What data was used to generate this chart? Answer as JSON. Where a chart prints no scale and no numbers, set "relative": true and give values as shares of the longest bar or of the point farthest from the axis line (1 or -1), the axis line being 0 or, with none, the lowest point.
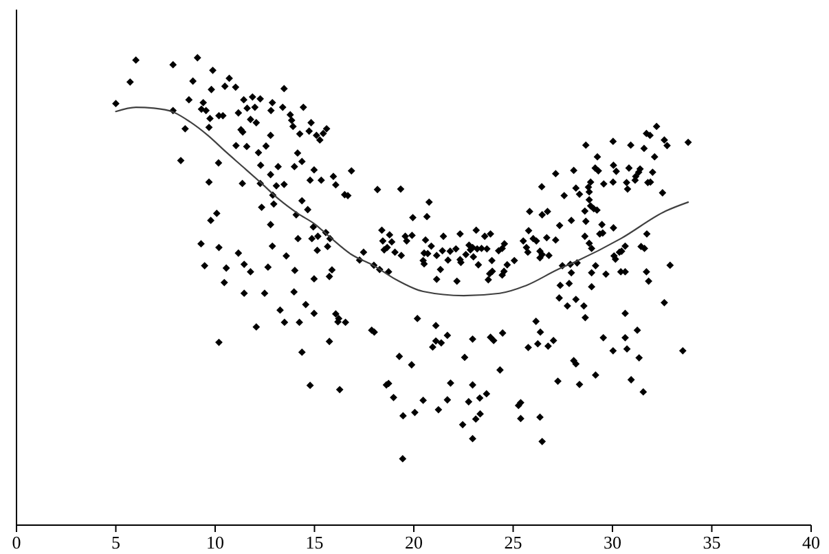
{
  "chart_data": {
    "type": "scatter",
    "relative": true,
    "xlim": [
      0,
      40
    ],
    "xticks": [
      0,
      5,
      10,
      15,
      20,
      25,
      30,
      35,
      40
    ],
    "marker": "diamond",
    "series": [
      {
        "color": "#000000",
        "x": [
          5.0,
          5.72,
          6.01,
          7.88,
          9.11,
          8.88,
          9.88,
          10.71,
          10.49,
          11.03,
          9.81,
          8.68,
          9.4,
          9.31,
          9.54,
          7.88,
          10.19,
          10.39,
          9.74,
          9.69,
          8.49,
          11.44,
          11.88,
          12.27,
          11.61,
          12.0,
          11.17,
          12.88,
          12.81,
          13.47,
          13.4,
          14.44,
          13.78,
          13.85,
          13.92,
          11.78,
          12.07,
          11.3,
          11.39,
          12.79,
          14.83,
          14.73,
          14.26,
          15.1,
          15.44,
          15.27,
          15.61,
          11.05,
          11.59,
          12.18,
          12.56,
          14.15,
          14.37,
          13.99,
          14.98,
          14.78,
          15.34,
          8.27,
          10.17,
          12.29,
          13.17,
          12.79,
          9.69,
          11.37,
          12.27,
          13.08,
          13.47,
          12.9,
          12.95,
          14.37,
          14.66,
          14.08,
          12.34,
          10.08,
          9.78,
          12.79,
          14.94,
          9.29,
          10.19,
          9.47,
          10.56,
          11.17,
          11.46,
          11.78,
          10.46,
          12.66,
          12.88,
          13.58,
          14.17,
          14.87,
          15.17,
          15.57,
          15.78,
          15.66,
          15.14,
          14.01,
          14.98,
          15.88,
          15.75,
          11.46,
          12.49,
          13.97,
          14.56,
          13.27,
          14.98,
          13.49,
          14.24,
          16.07,
          16.22,
          16.18,
          16.56,
          12.07,
          10.19,
          15.75,
          14.37,
          17.88,
          18.01,
          20.18,
          19.27,
          19.89,
          14.78,
          16.27,
          18.62,
          18.73,
          18.98,
          18.39,
          18.78,
          18.44,
          18.89,
          18.66,
          18.51,
          19.05,
          19.37,
          19.57,
          19.91,
          19.64,
          17.47,
          17.27,
          17.99,
          18.28,
          18.73,
          15.95,
          16.07,
          16.52,
          16.68,
          16.86,
          18.17,
          19.34,
          20.77,
          20.66,
          19.95,
          20.59,
          21.49,
          22.33,
          23.14,
          23.57,
          23.86,
          20.88,
          20.52,
          20.7,
          21.15,
          21.44,
          21.83,
          22.12,
          21.72,
          22.33,
          22.37,
          22.78,
          22.96,
          22.85,
          23.19,
          23.41,
          23.68,
          22.62,
          23.0,
          23.25,
          20.52,
          20.47,
          21.34,
          21.15,
          22.17,
          23.93,
          23.82,
          23.95,
          23.75,
          24.27,
          24.45,
          24.56,
          24.54,
          24.45,
          24.7,
          25.06,
          25.51,
          25.67,
          25.74,
          25.78,
          26.01,
          26.17,
          25.83,
          26.46,
          26.73,
          26.44,
          27.14,
          26.35,
          26.46,
          26.8,
          26.35,
          26.69,
          21.11,
          21.69,
          21.11,
          21.38,
          20.95,
          22.96,
          23.86,
          24.02,
          24.47,
          26.15,
          26.37,
          26.24,
          25.76,
          26.76,
          27.03,
          27.32,
          27.73,
          22.56,
          24.34,
          21.85,
          22.96,
          20.47,
          21.69,
          22.76,
          23.32,
          23.66,
          21.24,
          20.05,
          19.46,
          23.12,
          23.34,
          22.46,
          22.96,
          25.27,
          25.38,
          25.38,
          26.35,
          26.46,
          27.25,
          19.44,
          32.22,
          31.71,
          31.89,
          32.61,
          32.75,
          33.81,
          30.03,
          30.92,
          31.59,
          28.66,
          29.24,
          32.12,
          30.05,
          30.19,
          29.13,
          29.29,
          30.83,
          31.39,
          31.32,
          31.17,
          32.02,
          28.05,
          28.9,
          28.79,
          28.83,
          28.16,
          28.34,
          30.03,
          29.56,
          30.71,
          30.76,
          31.14,
          31.78,
          31.91,
          32.52,
          27.57,
          28.83,
          28.9,
          29.06,
          29.22,
          28.61,
          27.93,
          28.66,
          27.34,
          29.47,
          30.05,
          29.36,
          29.51,
          28.61,
          27.14,
          28.83,
          31.73,
          31.44,
          31.61,
          30.64,
          30.46,
          30.35,
          30.08,
          30.15,
          28.95,
          27.88,
          28.22,
          27.48,
          29.15,
          32.9,
          27.93,
          27.37,
          27.82,
          28.95,
          29.67,
          30.42,
          30.64,
          31.71,
          31.82,
          28.95,
          32.61,
          28.16,
          28.56,
          28.63,
          30.64,
          31.25,
          29.54,
          30.64,
          30.03,
          30.73,
          31.34,
          33.54,
          28.05,
          28.16,
          29.15,
          28.34,
          30.94,
          31.55
        ],
        "values": [
          0.902,
          0.948,
          0.995,
          0.985,
          1.0,
          0.95,
          0.973,
          0.956,
          0.939,
          0.937,
          0.932,
          0.91,
          0.904,
          0.89,
          0.887,
          0.887,
          0.876,
          0.876,
          0.87,
          0.851,
          0.848,
          0.91,
          0.916,
          0.912,
          0.892,
          0.894,
          0.882,
          0.904,
          0.887,
          0.934,
          0.894,
          0.894,
          0.878,
          0.866,
          0.853,
          0.868,
          0.861,
          0.846,
          0.841,
          0.834,
          0.861,
          0.843,
          0.837,
          0.834,
          0.838,
          0.824,
          0.848,
          0.812,
          0.81,
          0.797,
          0.811,
          0.796,
          0.778,
          0.767,
          0.76,
          0.738,
          0.738,
          0.78,
          0.775,
          0.77,
          0.767,
          0.75,
          0.734,
          0.731,
          0.731,
          0.726,
          0.729,
          0.706,
          0.687,
          0.694,
          0.675,
          0.664,
          0.68,
          0.667,
          0.652,
          0.643,
          0.638,
          0.602,
          0.594,
          0.555,
          0.55,
          0.582,
          0.558,
          0.542,
          0.519,
          0.552,
          0.597,
          0.576,
          0.613,
          0.613,
          0.618,
          0.626,
          0.613,
          0.596,
          0.588,
          0.545,
          0.527,
          0.546,
          0.532,
          0.496,
          0.496,
          0.499,
          0.472,
          0.46,
          0.453,
          0.434,
          0.434,
          0.452,
          0.442,
          0.435,
          0.434,
          0.424,
          0.391,
          0.393,
          0.37,
          0.417,
          0.413,
          0.442,
          0.361,
          0.343,
          0.299,
          0.29,
          0.3,
          0.303,
          0.273,
          0.631,
          0.621,
          0.608,
          0.606,
          0.594,
          0.589,
          0.584,
          0.577,
          0.618,
          0.62,
          0.608,
          0.584,
          0.567,
          0.556,
          0.547,
          0.542,
          0.746,
          0.728,
          0.707,
          0.705,
          0.758,
          0.718,
          0.719,
          0.691,
          0.66,
          0.658,
          0.61,
          0.618,
          0.623,
          0.631,
          0.618,
          0.623,
          0.597,
          0.582,
          0.581,
          0.577,
          0.587,
          0.586,
          0.591,
          0.567,
          0.568,
          0.562,
          0.599,
          0.594,
          0.589,
          0.591,
          0.592,
          0.591,
          0.579,
          0.574,
          0.557,
          0.559,
          0.566,
          0.547,
          0.526,
          0.522,
          0.566,
          0.538,
          0.543,
          0.525,
          0.587,
          0.592,
          0.602,
          0.543,
          0.535,
          0.557,
          0.566,
          0.608,
          0.594,
          0.584,
          0.63,
          0.613,
          0.608,
          0.671,
          0.664,
          0.671,
          0.724,
          0.752,
          0.586,
          0.579,
          0.577,
          0.572,
          0.615,
          0.427,
          0.406,
          0.394,
          0.39,
          0.381,
          0.398,
          0.402,
          0.395,
          0.411,
          0.436,
          0.413,
          0.388,
          0.38,
          0.383,
          0.395,
          0.486,
          0.469,
          0.359,
          0.332,
          0.304,
          0.3,
          0.267,
          0.268,
          0.264,
          0.272,
          0.281,
          0.247,
          0.241,
          0.234,
          0.227,
          0.238,
          0.215,
          0.185,
          0.256,
          0.262,
          0.228,
          0.231,
          0.179,
          0.308,
          0.142,
          0.853,
          0.838,
          0.834,
          0.824,
          0.812,
          0.819,
          0.821,
          0.813,
          0.806,
          0.813,
          0.788,
          0.788,
          0.77,
          0.757,
          0.764,
          0.758,
          0.764,
          0.762,
          0.755,
          0.746,
          0.755,
          0.759,
          0.734,
          0.723,
          0.713,
          0.721,
          0.708,
          0.734,
          0.73,
          0.733,
          0.719,
          0.738,
          0.733,
          0.734,
          0.711,
          0.705,
          0.696,
          0.683,
          0.677,
          0.674,
          0.672,
          0.652,
          0.65,
          0.641,
          0.643,
          0.636,
          0.623,
          0.625,
          0.618,
          0.61,
          0.603,
          0.623,
          0.596,
          0.592,
          0.597,
          0.586,
          0.584,
          0.576,
          0.569,
          0.592,
          0.558,
          0.561,
          0.555,
          0.555,
          0.556,
          0.54,
          0.513,
          0.517,
          0.54,
          0.537,
          0.542,
          0.542,
          0.542,
          0.522,
          0.51,
          0.476,
          0.483,
          0.469,
          0.444,
          0.453,
          0.417,
          0.401,
          0.401,
          0.373,
          0.377,
          0.358,
          0.373,
          0.352,
          0.345,
          0.321,
          0.301,
          0.311,
          0.285
        ]
      },
      {
        "type": "line",
        "color": "#404040",
        "marker": "none",
        "line_style": "solid",
        "x": [
          5.0,
          6.01,
          6.92,
          7.82,
          8.73,
          9.63,
          10.53,
          11.44,
          12.34,
          13.24,
          14.15,
          15.05,
          15.73,
          16.86,
          17.99,
          19.12,
          20.47,
          22.51,
          24.32,
          25.67,
          27.25,
          28.16,
          30.42,
          32.68,
          33.81
        ],
        "values": [
          0.885,
          0.894,
          0.892,
          0.885,
          0.863,
          0.834,
          0.799,
          0.765,
          0.731,
          0.696,
          0.667,
          0.643,
          0.618,
          0.579,
          0.555,
          0.525,
          0.5,
          0.491,
          0.496,
          0.513,
          0.547,
          0.564,
          0.613,
          0.672,
          0.691
        ]
      }
    ]
  }
}
